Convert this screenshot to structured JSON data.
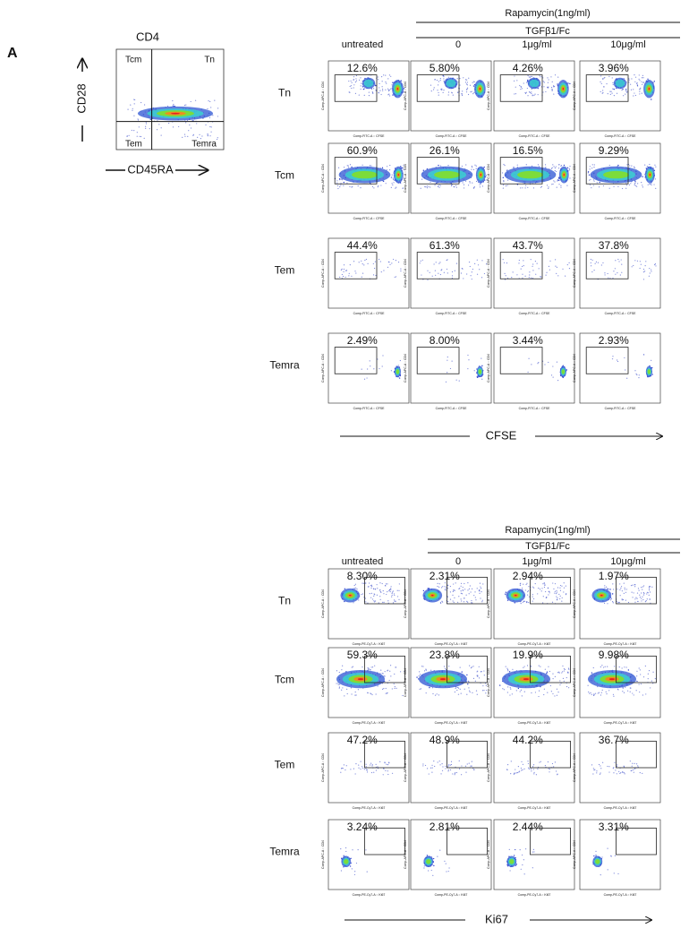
{
  "panel_label": "A",
  "gating": {
    "title": "CD4",
    "y_label": "CD28",
    "x_label": "CD45RA",
    "quadrants": [
      "Tcm",
      "Tn",
      "Tem",
      "Temra"
    ]
  },
  "blocks": [
    {
      "treatment": "Rapamycin(1ng/ml)",
      "subtreatment": "TGFβ1/Fc",
      "columns": [
        "untreated",
        "0",
        "1μg/ml",
        "10μg/ml"
      ],
      "rows": [
        {
          "label": "Tn",
          "values": [
            "12.6%",
            "5.80%",
            "4.26%",
            "3.96%"
          ]
        },
        {
          "label": "Tcm",
          "values": [
            "60.9%",
            "26.1%",
            "16.5%",
            "9.29%"
          ]
        },
        {
          "label": "Tem",
          "values": [
            "44.4%",
            "61.3%",
            "43.7%",
            "37.8%"
          ]
        },
        {
          "label": "Temra",
          "values": [
            "2.49%",
            "8.00%",
            "3.44%",
            "2.93%"
          ]
        }
      ],
      "x_label": "CFSE",
      "plot_x_label": "Comp-FITC-A :: CFSE",
      "plot_y_label": "Comp-APC-A :: CD4"
    },
    {
      "treatment": "Rapamycin(1ng/ml)",
      "subtreatment": "TGFβ1/Fc",
      "columns": [
        "untreated",
        "0",
        "1μg/ml",
        "10μg/ml"
      ],
      "rows": [
        {
          "label": "Tn",
          "values": [
            "8.30%",
            "2.31%",
            "2.94%",
            "1.97%"
          ]
        },
        {
          "label": "Tcm",
          "values": [
            "59.3%",
            "23.8%",
            "19.9%",
            "9.98%"
          ]
        },
        {
          "label": "Tem",
          "values": [
            "47.2%",
            "48.9%",
            "44.2%",
            "36.7%"
          ]
        },
        {
          "label": "Temra",
          "values": [
            "3.24%",
            "2.81%",
            "2.44%",
            "3.31%"
          ]
        }
      ],
      "x_label": "Ki67",
      "plot_x_label": "Comp-PE-Cy7-A :: Ki67",
      "plot_y_label": "Comp-APC-A :: CD4"
    }
  ]
}
